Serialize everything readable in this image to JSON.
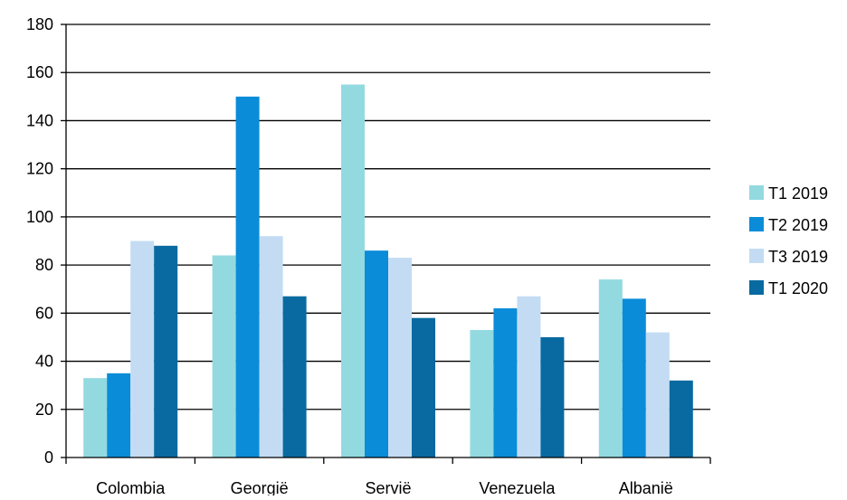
{
  "chart_data": {
    "type": "bar",
    "title": "",
    "xlabel": "",
    "ylabel": "",
    "ylim": [
      0,
      180
    ],
    "y_ticks": [
      0,
      20,
      40,
      60,
      80,
      100,
      120,
      140,
      160,
      180
    ],
    "grid": "horizontal",
    "legend_position": "right",
    "categories": [
      "Colombia",
      "Georgië",
      "Servië",
      "Venezuela",
      "Albanië"
    ],
    "series": [
      {
        "name": "T1 2019",
        "color": "#92DAE0",
        "values": [
          33,
          84,
          155,
          53,
          74
        ]
      },
      {
        "name": "T2 2019",
        "color": "#0A8CD8",
        "values": [
          35,
          150,
          86,
          62,
          66
        ]
      },
      {
        "name": "T3 2019",
        "color": "#C3DCF3",
        "values": [
          90,
          92,
          83,
          67,
          52
        ]
      },
      {
        "name": "T1 2020",
        "color": "#086AA0",
        "values": [
          88,
          67,
          58,
          50,
          32
        ]
      }
    ]
  }
}
